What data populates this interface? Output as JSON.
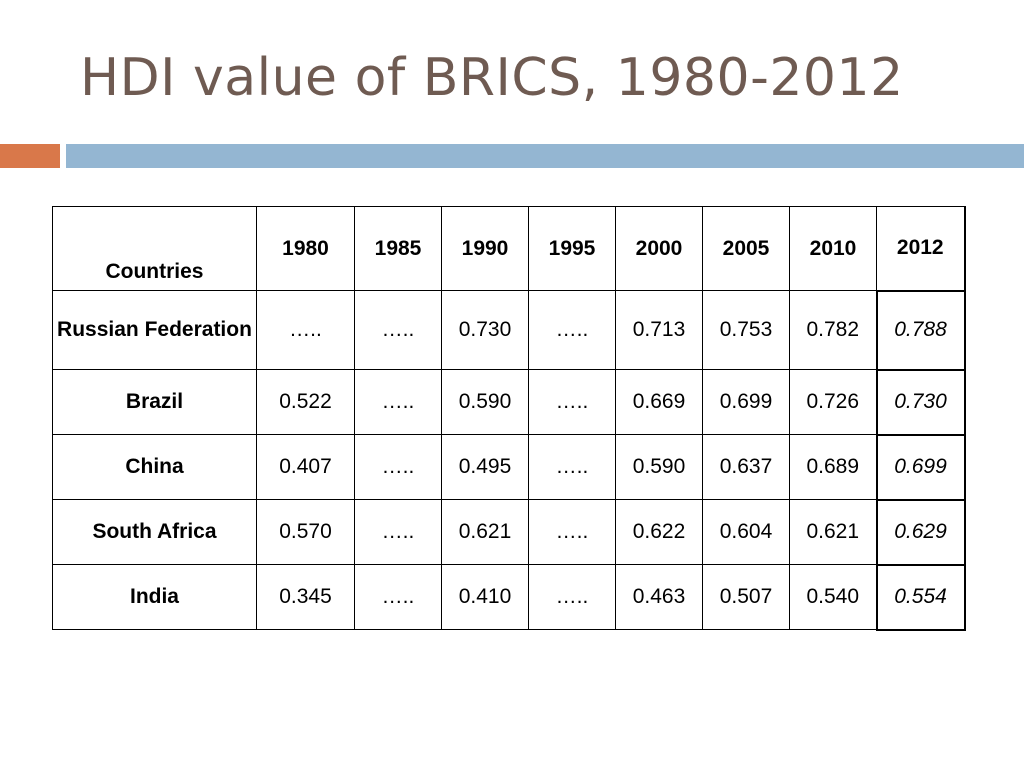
{
  "slide": {
    "title": "HDI value of BRICS, 1980-2012"
  },
  "colors": {
    "title": "#6f5b52",
    "accent_orange": "#d9784a",
    "accent_blue": "#94b6d2"
  },
  "table": {
    "header": {
      "countries": "Countries",
      "years": [
        "1980",
        "1985",
        "1990",
        "1995",
        "2000",
        "2005",
        "2010",
        "2012"
      ]
    },
    "rows": [
      {
        "country": "Russian Federation",
        "values": [
          "…..",
          "…..",
          "0.730",
          "…..",
          "0.713",
          "0.753",
          "0.782",
          "0.788"
        ]
      },
      {
        "country": "Brazil",
        "values": [
          "0.522",
          "…..",
          "0.590",
          "…..",
          "0.669",
          "0.699",
          "0.726",
          "0.730"
        ]
      },
      {
        "country": "China",
        "values": [
          "0.407",
          "…..",
          "0.495",
          "…..",
          "0.590",
          "0.637",
          "0.689",
          "0.699"
        ]
      },
      {
        "country": "South Africa",
        "values": [
          "0.570",
          "…..",
          "0.621",
          "…..",
          "0.622",
          "0.604",
          "0.621",
          "0.629"
        ]
      },
      {
        "country": "India",
        "values": [
          "0.345",
          "…..",
          "0.410",
          "…..",
          "0.463",
          "0.507",
          "0.540",
          "0.554"
        ]
      }
    ]
  }
}
